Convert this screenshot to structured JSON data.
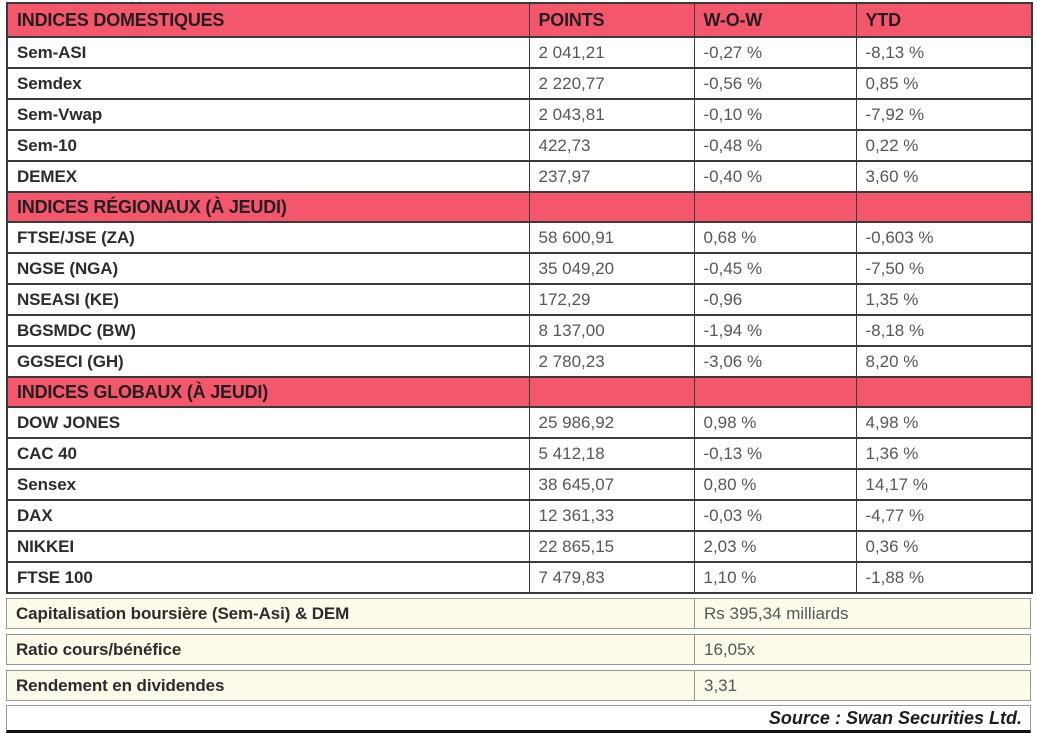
{
  "colors": {
    "section_pink": "#f4566b",
    "cream_row": "#fcfae8",
    "dark_border": "#3a3a3a",
    "label_text": "#2e2b2c",
    "value_text": "#55575a"
  },
  "table": {
    "headers": [
      "INDICES DOMESTIQUES",
      "POINTS",
      "W-O-W",
      "YTD"
    ],
    "rows": [
      {
        "type": "data",
        "label": "Sem-ASI",
        "points": "2 041,21",
        "wow": "-0,27 %",
        "ytd": "-8,13 %"
      },
      {
        "type": "data",
        "label": "Semdex",
        "points": "2 220,77",
        "wow": "-0,56 %",
        "ytd": "0,85 %"
      },
      {
        "type": "data",
        "label": "Sem-Vwap",
        "points": "2 043,81",
        "wow": "-0,10 %",
        "ytd": "-7,92 %"
      },
      {
        "type": "data",
        "label": "Sem-10",
        "points": "422,73",
        "wow": "-0,48 %",
        "ytd": "0,22 %"
      },
      {
        "type": "data",
        "label": "DEMEX",
        "points": "237,97",
        "wow": "-0,40 %",
        "ytd": "3,60 %"
      },
      {
        "type": "section",
        "label": "INDICES RÉGIONAUX (À JEUDI)"
      },
      {
        "type": "data",
        "label": "FTSE/JSE (ZA)",
        "points": "58 600,91",
        "wow": "0,68 %",
        "ytd": "-0,603 %"
      },
      {
        "type": "data",
        "label": "NGSE (NGA)",
        "points": "35 049,20",
        "wow": "-0,45 %",
        "ytd": "-7,50 %"
      },
      {
        "type": "data",
        "label": "NSEASI (KE)",
        "points": "172,29",
        "wow": "-0,96",
        "ytd": "1,35 %"
      },
      {
        "type": "data",
        "label": "BGSMDC (BW)",
        "points": "8 137,00",
        "wow": "-1,94 %",
        "ytd": "-8,18 %"
      },
      {
        "type": "data",
        "label": "GGSECI (GH)",
        "points": "2 780,23",
        "wow": "-3,06 %",
        "ytd": "8,20 %"
      },
      {
        "type": "section",
        "label": "INDICES GLOBAUX (À JEUDI)"
      },
      {
        "type": "data",
        "label": "DOW JONES",
        "points": "25 986,92",
        "wow": "0,98 %",
        "ytd": "4,98 %"
      },
      {
        "type": "data",
        "label": "CAC 40",
        "points": "5 412,18",
        "wow": "-0,13 %",
        "ytd": "1,36 %"
      },
      {
        "type": "data",
        "label": "Sensex",
        "points": "38 645,07",
        "wow": "0,80 %",
        "ytd": "14,17 %"
      },
      {
        "type": "data",
        "label": "DAX",
        "points": "12 361,33",
        "wow": "-0,03 %",
        "ytd": "-4,77 %"
      },
      {
        "type": "data",
        "label": "NIKKEI",
        "points": "22 865,15",
        "wow": "2,03 %",
        "ytd": "0,36 %"
      },
      {
        "type": "data",
        "label": "FTSE 100",
        "points": "7 479,83",
        "wow": "1,10 %",
        "ytd": "-1,88 %"
      }
    ]
  },
  "summary": [
    {
      "label": "Capitalisation boursière (Sem-Asi) & DEM",
      "value": "Rs 395,34 milliards"
    },
    {
      "label": "Ratio cours/bénéfice",
      "value": "16,05x"
    },
    {
      "label": "Rendement en dividendes",
      "value": "3,31"
    }
  ],
  "footer": {
    "source": "Source : Swan Securities Ltd."
  }
}
